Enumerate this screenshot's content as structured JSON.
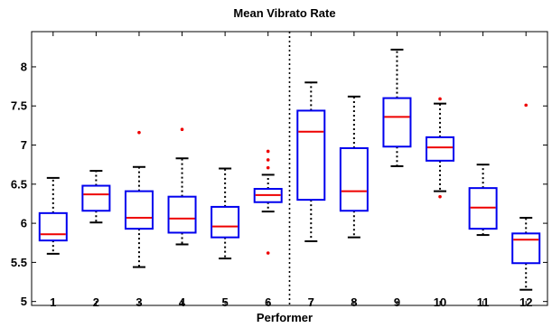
{
  "chart_data": {
    "type": "boxplot",
    "title": "Mean Vibrato Rate",
    "xlabel": "Performer",
    "ylabel": "",
    "ylim": [
      4.95,
      8.45
    ],
    "yticks": [
      "5",
      "5.5",
      "6",
      "6.5",
      "7",
      "7.5",
      "8"
    ],
    "categories": [
      "1",
      "2",
      "3",
      "4",
      "5",
      "6",
      "7",
      "8",
      "9",
      "10",
      "11",
      "12"
    ],
    "divider_after_category": "6",
    "colors": {
      "box": "#0000ee",
      "median": "#ee0000",
      "outlier": "#ee0000",
      "whisker": "#000000",
      "axis": "#000000"
    },
    "boxes": [
      {
        "category": "1",
        "whisker_low": 5.61,
        "q1": 5.78,
        "median": 5.86,
        "q3": 6.13,
        "whisker_high": 6.58,
        "outliers": []
      },
      {
        "category": "2",
        "whisker_low": 6.01,
        "q1": 6.16,
        "median": 6.37,
        "q3": 6.48,
        "whisker_high": 6.67,
        "outliers": []
      },
      {
        "category": "3",
        "whisker_low": 5.44,
        "q1": 5.93,
        "median": 6.07,
        "q3": 6.41,
        "whisker_high": 6.72,
        "outliers": [
          7.16
        ]
      },
      {
        "category": "4",
        "whisker_low": 5.73,
        "q1": 5.88,
        "median": 6.06,
        "q3": 6.34,
        "whisker_high": 6.83,
        "outliers": [
          7.2
        ]
      },
      {
        "category": "5",
        "whisker_low": 5.55,
        "q1": 5.82,
        "median": 5.96,
        "q3": 6.21,
        "whisker_high": 6.7,
        "outliers": []
      },
      {
        "category": "6",
        "whisker_low": 6.15,
        "q1": 6.27,
        "median": 6.36,
        "q3": 6.44,
        "whisker_high": 6.62,
        "outliers": [
          6.71,
          6.81,
          6.92,
          5.62
        ]
      },
      {
        "category": "7",
        "whisker_low": 5.77,
        "q1": 6.3,
        "median": 7.17,
        "q3": 7.44,
        "whisker_high": 7.8,
        "outliers": []
      },
      {
        "category": "8",
        "whisker_low": 5.82,
        "q1": 6.16,
        "median": 6.41,
        "q3": 6.96,
        "whisker_high": 7.62,
        "outliers": []
      },
      {
        "category": "9",
        "whisker_low": 6.73,
        "q1": 6.98,
        "median": 7.36,
        "q3": 7.6,
        "whisker_high": 8.22,
        "outliers": []
      },
      {
        "category": "10",
        "whisker_low": 6.41,
        "q1": 6.8,
        "median": 6.97,
        "q3": 7.1,
        "whisker_high": 7.53,
        "outliers": [
          7.59,
          6.34
        ]
      },
      {
        "category": "11",
        "whisker_low": 5.85,
        "q1": 5.93,
        "median": 6.2,
        "q3": 6.45,
        "whisker_high": 6.75,
        "outliers": []
      },
      {
        "category": "12",
        "whisker_low": 5.15,
        "q1": 5.49,
        "median": 5.79,
        "q3": 5.87,
        "whisker_high": 6.07,
        "outliers": [
          7.51
        ]
      }
    ]
  }
}
